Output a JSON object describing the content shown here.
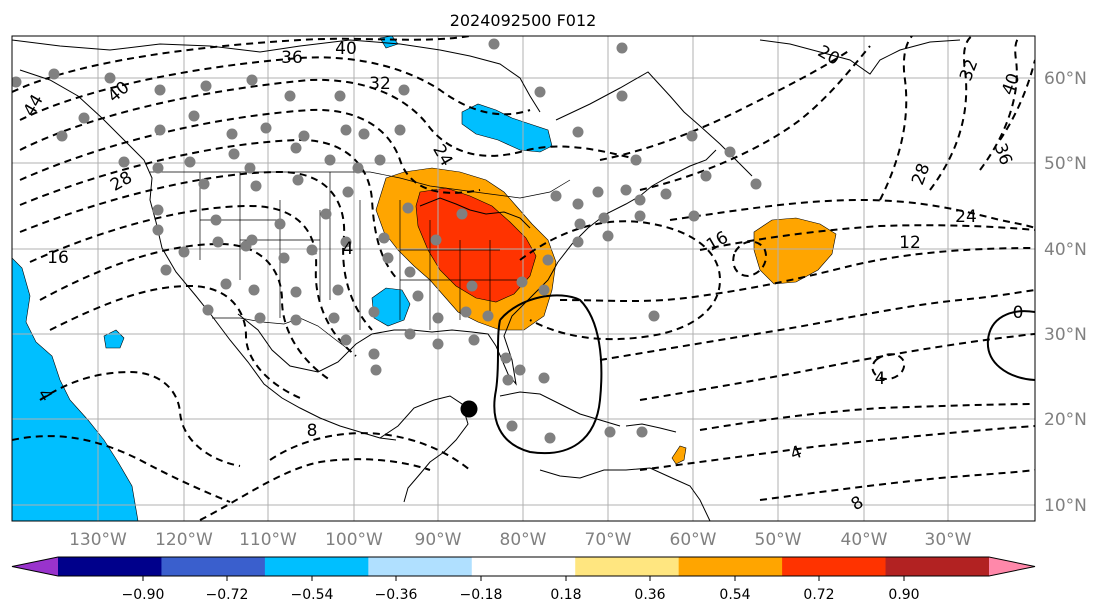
{
  "title": "2024092500 F012",
  "lon_labels": [
    "130°W",
    "120°W",
    "110°W",
    "100°W",
    "90°W",
    "80°W",
    "70°W",
    "60°W",
    "50°W",
    "40°W",
    "30°W"
  ],
  "lat_labels": [
    "60°N",
    "50°N",
    "40°N",
    "30°N",
    "20°N",
    "10°N"
  ],
  "colorbar": {
    "ticks": [
      "−0.90",
      "−0.72",
      "−0.54",
      "−0.36",
      "−0.18",
      "0.18",
      "0.36",
      "0.54",
      "0.72",
      "0.90"
    ],
    "colors": [
      "#9933cc",
      "#00008b",
      "#3a5fcd",
      "#00bfff",
      "#b0e0ff",
      "#ffffff",
      "#ffe680",
      "#ffa500",
      "#ff3300",
      "#b22222",
      "#ff88aa"
    ]
  },
  "contour_labels": [
    {
      "text": "36"
    },
    {
      "text": "40"
    },
    {
      "text": "32"
    },
    {
      "text": "44"
    },
    {
      "text": "40"
    },
    {
      "text": "28"
    },
    {
      "text": "16"
    },
    {
      "text": "24"
    },
    {
      "text": "20"
    },
    {
      "text": "32"
    },
    {
      "text": "40"
    },
    {
      "text": "36"
    },
    {
      "text": "28"
    },
    {
      "text": "24"
    },
    {
      "text": "12"
    },
    {
      "text": "16"
    },
    {
      "text": "0"
    },
    {
      "text": "4"
    },
    {
      "text": "4"
    },
    {
      "text": "8"
    },
    {
      "text": "4"
    },
    {
      "text": "8"
    },
    {
      "text": "4"
    }
  ],
  "colors": {
    "orange": "#ffa500",
    "red": "#ff3300",
    "cyan": "#00bfff",
    "station": "#808080",
    "grid": "#b0b0b0",
    "axis_label": "#808080"
  }
}
